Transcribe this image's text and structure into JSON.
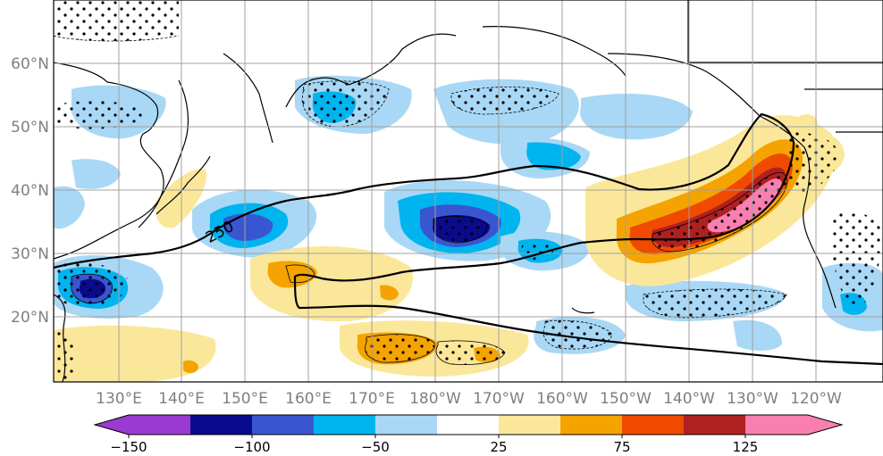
{
  "map": {
    "lon_ticks": [
      "130°E",
      "140°E",
      "150°E",
      "160°E",
      "170°E",
      "180°W",
      "170°W",
      "160°W",
      "150°W",
      "140°W",
      "130°W",
      "120°W"
    ],
    "lat_ticks": [
      "60°N",
      "50°N",
      "40°N",
      "30°N",
      "20°N"
    ],
    "contour_label": "250",
    "colors": {
      "ocean_bg": "#ffffff",
      "grid": "#a0a0a0",
      "coast": "#000000",
      "neg_light": "#a8d8f5",
      "neg_mid": "#00b4ef",
      "neg_strong": "#3a55d0",
      "neg_max": "#0a0a8c",
      "pos_light": "#fbe79a",
      "pos_mid": "#f5a300",
      "pos_strong": "#f04a00",
      "pos_max": "#b02020",
      "pos_extreme": "#f97fb0",
      "neg_extreme": "#9a3ad0"
    }
  },
  "colorbar": {
    "labels": [
      "−150",
      "−100",
      "−50",
      "25",
      "75",
      "125"
    ],
    "colors": [
      "#9a3ad0",
      "#0a0a8c",
      "#3a55d0",
      "#00b4ef",
      "#a8d8f5",
      "#ffffff",
      "#fbe79a",
      "#f5a300",
      "#f04a00",
      "#b02020",
      "#f97fb0"
    ]
  }
}
